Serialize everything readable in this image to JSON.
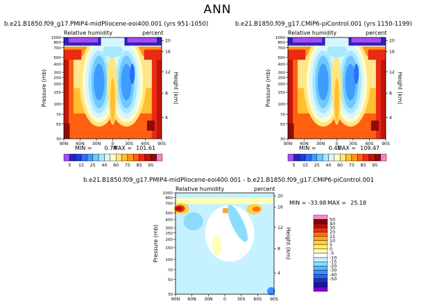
{
  "page_title": "ANN",
  "colors": {
    "lab_top": [
      "#a34cf5",
      "#3420b4",
      "#1d3cd9",
      "#2b6dff",
      "#3f9cff",
      "#6fc9ff",
      "#a8e8ff",
      "#d6f7ff",
      "#fffcc8",
      "#ffe680",
      "#ffc030",
      "#ff9418",
      "#ff6010",
      "#ec2a10",
      "#c0140c",
      "#8c0c08",
      "#ff80c0"
    ],
    "lab_diff": [
      "#8000d0",
      "#2810a0",
      "#1830c8",
      "#2a62f0",
      "#3a92ff",
      "#5ab8ff",
      "#8cdcff",
      "#c6f1ff",
      "#ffffff",
      "#fffdb8",
      "#fff060",
      "#ffd040",
      "#ffa428",
      "#ff7014",
      "#e43214",
      "#b01010",
      "#7a0808",
      "#ff88c8"
    ]
  },
  "chart_data": [
    {
      "id": "left",
      "type": "heatmap",
      "title": "b.e21.B1850.f09_g17.PMIP4-midPliocene-eoi400.001  (yrs 951-1050)",
      "left_label": "Relative humidity",
      "right_label": "percent",
      "xlabel": "",
      "ylabel": "Pressure (mb)",
      "ylabel_right": "Height (km)",
      "x_ticks": [
        "90N",
        "60N",
        "30N",
        "0",
        "30S",
        "60S",
        "90S"
      ],
      "y_ticks": [
        "1000",
        "850",
        "700",
        "500",
        "400",
        "300",
        "250",
        "200",
        "150",
        "100",
        "70",
        "50",
        "30"
      ],
      "height_ticks": [
        "4",
        "8",
        "12",
        "16",
        "20"
      ],
      "stats": {
        "min_label": "MIN =",
        "min": "0.74",
        "max_label": "MAX =",
        "max": "101.61"
      },
      "colorbar_labels": [
        "5",
        "15",
        "25",
        "40",
        "60",
        "75",
        "85",
        "95"
      ]
    },
    {
      "id": "right",
      "type": "heatmap",
      "title": "b.e21.B1850.f09_g17.CMIP6-piControl.001  (yrs 1150-1199)",
      "left_label": "Relative humidity",
      "right_label": "percent",
      "xlabel": "",
      "ylabel": "Pressure (mb)",
      "ylabel_right": "Height (km)",
      "x_ticks": [
        "90N",
        "60N",
        "30N",
        "0",
        "30S",
        "60S",
        "90S"
      ],
      "y_ticks": [
        "1000",
        "850",
        "700",
        "500",
        "400",
        "300",
        "250",
        "200",
        "150",
        "100",
        "70",
        "50",
        "30"
      ],
      "height_ticks": [
        "4",
        "8",
        "12",
        "16",
        "20"
      ],
      "stats": {
        "min_label": "MIN =",
        "min": "0.41",
        "max_label": "MAX =",
        "max": "109.47"
      },
      "colorbar_labels": [
        "5",
        "15",
        "25",
        "40",
        "60",
        "75",
        "85",
        "95"
      ]
    },
    {
      "id": "diff",
      "type": "heatmap",
      "title": "b.e21.B1850.f09_g17.PMIP4-midPliocene-eoi400.001  -  b.e21.B1850.f09_g17.CMIP6-piControl.001",
      "left_label": "Relative humidity",
      "right_label": "percent",
      "xlabel": "",
      "ylabel": "Pressure (mb)",
      "ylabel_right": "Height (km)",
      "x_ticks": [
        "90N",
        "60N",
        "30N",
        "0",
        "30S",
        "60S",
        "90S"
      ],
      "y_ticks": [
        "1000",
        "850",
        "700",
        "500",
        "400",
        "300",
        "250",
        "200",
        "150",
        "100",
        "70",
        "50",
        "30"
      ],
      "height_ticks": [
        "4",
        "8",
        "12",
        "16",
        "20"
      ],
      "stats": {
        "min_label": "MIN =",
        "min": "-33.98",
        "max_label": "MAX =",
        "max": "25.18"
      },
      "colorbar_labels": [
        "50",
        "40",
        "30",
        "20",
        "15",
        "10",
        "5",
        "0",
        "-5",
        "-10",
        "-15",
        "-20",
        "-30",
        "-40",
        "-50"
      ]
    }
  ]
}
